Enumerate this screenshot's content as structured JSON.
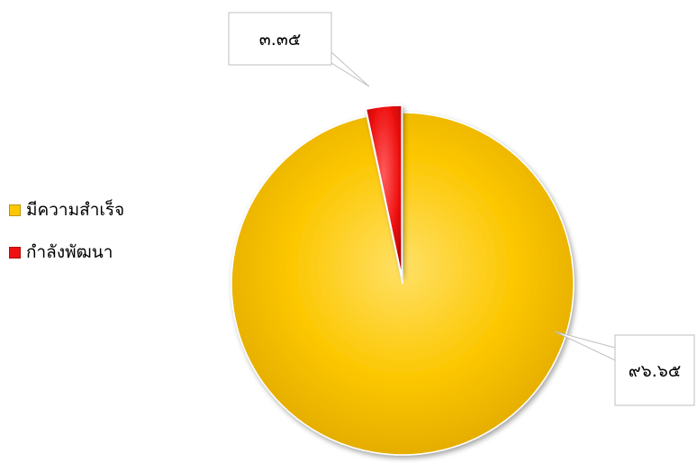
{
  "chart_data": {
    "type": "pie",
    "categories": [
      "มีความสำเร็จ",
      "กำลังพัฒนา"
    ],
    "values": [
      96.65,
      3.35
    ],
    "data_labels": [
      "๙๖.๖๕",
      "๓.๓๕"
    ],
    "exploded": [
      "กำลังพัฒนา"
    ],
    "colors": [
      "#FCC700",
      "#EE1111"
    ],
    "legend": "left",
    "title": ""
  },
  "legend": {
    "items": [
      {
        "label": "มีความสำเร็จ",
        "color": "#FCC700"
      },
      {
        "label": "กำลังพัฒนา",
        "color": "#EE1111"
      }
    ]
  }
}
